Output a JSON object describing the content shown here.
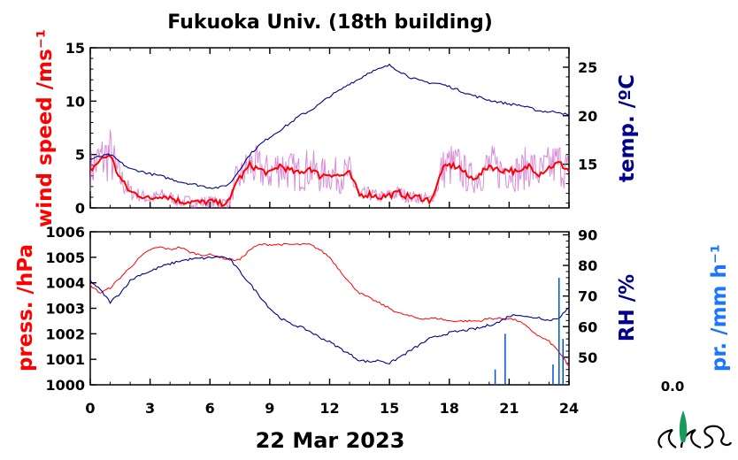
{
  "title": "Fukuoka Univ. (18th building)",
  "date_label": "22 Mar 2023",
  "precip_readout": "0.0",
  "colors": {
    "red": "#ff0000",
    "navy": "#00008b",
    "magenta": "#cc66cc",
    "precip_bar": "#0055cc",
    "precip_label": "#1a75ff",
    "logo_green": "#1a9a5a"
  },
  "chart_data": [
    {
      "type": "line",
      "panel": "top",
      "x_ticks": [
        "0",
        "3",
        "6",
        "9",
        "12",
        "15",
        "18",
        "21",
        "24"
      ],
      "xlim": [
        0,
        24
      ],
      "ylabel_left": "wind speed /ms⁻¹",
      "ylabel_right": "temp. /ºC",
      "ylim_left": [
        0,
        15
      ],
      "yticks_left": [
        "0",
        "5",
        "10",
        "15"
      ],
      "ylim_right": [
        10.5,
        27
      ],
      "yticks_right": [
        "15",
        "20",
        "25"
      ],
      "series": [
        {
          "axis": "left",
          "x": [
            0,
            0.5,
            1,
            1.3,
            1.6,
            2,
            2.5,
            3,
            3.5,
            4,
            4.5,
            5,
            5.5,
            6,
            6.5,
            7,
            7.3,
            7.6,
            8,
            8.5,
            9,
            9.5,
            10,
            10.5,
            11,
            11.5,
            12,
            12.5,
            13,
            13.5,
            14,
            14.5,
            15,
            15.5,
            16,
            16.5,
            17,
            17.3,
            17.6,
            18,
            18.5,
            19,
            19.5,
            20,
            20.5,
            21,
            21.5,
            22,
            22.5,
            23,
            23.5,
            24
          ],
          "values": [
            3.5,
            4.5,
            5,
            3.5,
            2.5,
            1.5,
            1.2,
            0.8,
            1.2,
            1.0,
            0.6,
            0.6,
            0.5,
            0.6,
            0.4,
            0.6,
            2.5,
            3.0,
            4.0,
            3.6,
            3.2,
            4.0,
            3.5,
            3.2,
            3.8,
            3.0,
            3.2,
            3.0,
            3.2,
            1.2,
            1.3,
            1.0,
            1.2,
            1.4,
            1.0,
            1.0,
            0.7,
            1.5,
            3.5,
            4.0,
            3.8,
            2.8,
            3.0,
            4.0,
            3.5,
            3.6,
            3.2,
            4.0,
            3.2,
            3.8,
            4.2,
            3.5
          ]
        },
        {
          "axis": "right",
          "x": [
            0,
            0.5,
            1,
            1.5,
            2,
            2.5,
            3,
            3.5,
            4,
            4.5,
            5,
            5.5,
            6,
            6.5,
            7,
            7.5,
            8,
            8.5,
            9,
            9.5,
            10,
            10.5,
            11,
            11.5,
            12,
            12.5,
            13,
            13.5,
            14,
            14.5,
            15,
            15.5,
            16,
            16.5,
            17,
            17.5,
            18,
            18.5,
            19,
            19.5,
            20,
            20.5,
            21,
            21.5,
            22,
            22.5,
            23,
            23.5,
            24
          ],
          "values": [
            15.5,
            15.8,
            16.0,
            15.2,
            14.5,
            14.3,
            14.0,
            13.8,
            13.5,
            13.2,
            13.0,
            12.8,
            12.6,
            12.6,
            13.0,
            14.5,
            16.0,
            17.0,
            17.8,
            18.5,
            19.2,
            20.0,
            20.5,
            21.2,
            22.0,
            22.6,
            23.3,
            23.8,
            24.5,
            24.8,
            25.2,
            24.6,
            24.0,
            23.6,
            23.4,
            23.3,
            23.0,
            22.6,
            22.2,
            21.9,
            21.6,
            21.4,
            21.2,
            21.1,
            20.8,
            20.5,
            20.4,
            20.4,
            20.0
          ]
        }
      ]
    },
    {
      "type": "line",
      "panel": "bottom",
      "x_ticks": [
        "0",
        "3",
        "6",
        "9",
        "12",
        "15",
        "18",
        "21",
        "24"
      ],
      "xlim": [
        0,
        24
      ],
      "ylabel_left": "press. /hPa",
      "ylabel_right": "RH /%",
      "ylabel_far_right": "pr. /mm h⁻¹",
      "ylim_left": [
        1000,
        1006
      ],
      "yticks_left": [
        "1000",
        "1001",
        "1002",
        "1003",
        "1004",
        "1005",
        "1006"
      ],
      "ylim_right": [
        41,
        91
      ],
      "yticks_right": [
        "50",
        "60",
        "70",
        "80",
        "90"
      ],
      "series": [
        {
          "axis": "left",
          "x": [
            0,
            0.5,
            1,
            1.5,
            2,
            2.5,
            3,
            3.5,
            4,
            4.5,
            5,
            5.5,
            6,
            6.5,
            7,
            7.5,
            8,
            8.5,
            9,
            9.5,
            10,
            10.5,
            11,
            11.5,
            12,
            12.5,
            13,
            13.5,
            14,
            14.5,
            15,
            15.5,
            16,
            16.5,
            17,
            17.5,
            18,
            18.5,
            19,
            19.5,
            20,
            20.5,
            21,
            21.5,
            22,
            22.5,
            23,
            23.5,
            24
          ],
          "values": [
            1003.9,
            1003.6,
            1003.8,
            1004.2,
            1004.6,
            1005.0,
            1005.3,
            1005.4,
            1005.3,
            1005.4,
            1005.2,
            1005.1,
            1005.1,
            1005.0,
            1004.9,
            1004.9,
            1005.3,
            1005.5,
            1005.5,
            1005.5,
            1005.5,
            1005.5,
            1005.5,
            1005.3,
            1005.0,
            1004.5,
            1004.0,
            1003.6,
            1003.4,
            1003.2,
            1003.0,
            1002.8,
            1002.7,
            1002.6,
            1002.6,
            1002.6,
            1002.5,
            1002.5,
            1002.5,
            1002.5,
            1002.6,
            1002.6,
            1002.6,
            1002.5,
            1002.2,
            1001.9,
            1001.7,
            1001.3,
            1000.7
          ]
        },
        {
          "axis": "right",
          "x": [
            0,
            0.5,
            1,
            1.5,
            2,
            2.5,
            3,
            3.5,
            4,
            4.5,
            5,
            5.5,
            6,
            6.5,
            7,
            7.5,
            8,
            8.5,
            9,
            9.5,
            10,
            10.5,
            11,
            11.5,
            12,
            12.5,
            13,
            13.5,
            14,
            14.5,
            15,
            15.5,
            16,
            16.5,
            17,
            17.5,
            18,
            18.5,
            19,
            19.5,
            20,
            20.5,
            21,
            21.5,
            22,
            22.5,
            23,
            23.5,
            24
          ],
          "values": [
            75.0,
            72.0,
            68.0,
            71.0,
            75.0,
            77.0,
            78.0,
            79.5,
            80.5,
            81.5,
            82.0,
            82.3,
            82.5,
            83.0,
            82.0,
            78.0,
            74.0,
            70.0,
            66.0,
            63.0,
            61.0,
            60.0,
            58.5,
            56.5,
            55.0,
            53.0,
            51.0,
            49.0,
            48.5,
            49.0,
            48.0,
            50.0,
            52.0,
            54.0,
            56.0,
            57.0,
            58.0,
            58.5,
            59.0,
            59.5,
            60.5,
            61.5,
            63.5,
            64.0,
            63.0,
            63.0,
            62.0,
            63.0,
            66.0
          ]
        }
      ]
    },
    {
      "type": "bar",
      "panel": "bottom",
      "series_role": "precipitation",
      "x": [
        20.3,
        20.8,
        23.2,
        23.5,
        23.7
      ],
      "values": [
        0.3,
        1.0,
        0.4,
        2.1,
        0.9
      ],
      "ylim": [
        0,
        3
      ]
    }
  ]
}
